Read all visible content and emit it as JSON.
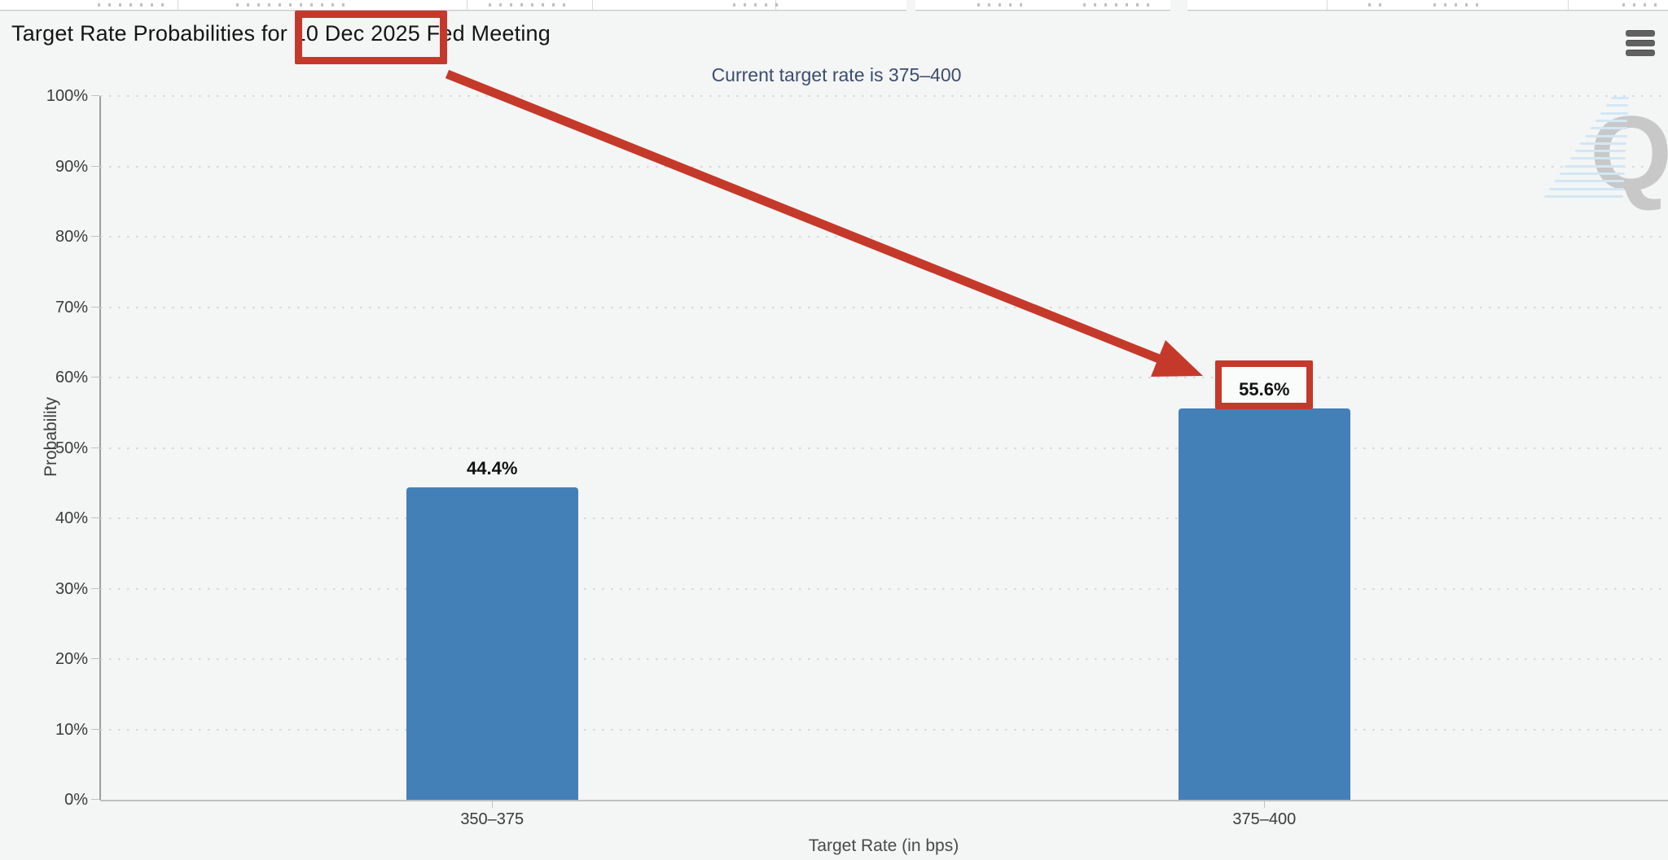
{
  "colors": {
    "accent_red": "#c5392b",
    "bar_blue": "#4480b8",
    "subtitle_navy": "#3d4d6e",
    "watermark_gray": "#c1c1c1",
    "watermark_blue": "#d2e7f4"
  },
  "menu": {
    "icon": "hamburger-icon"
  },
  "chart_data": {
    "type": "bar",
    "title": "Target Rate Probabilities for 10 Dec 2025 Fed Meeting",
    "subtitle": "Current target rate is 375–400",
    "categories": [
      "350–375",
      "375–400"
    ],
    "values": [
      44.4,
      55.6
    ],
    "value_labels": [
      "44.4%",
      "55.6%"
    ],
    "xlabel": "Target Rate (in bps)",
    "ylabel": "Probability",
    "ylim": [
      0,
      100
    ],
    "ytick_step": 10,
    "ytick_suffix": "%",
    "grid": "dotted-horizontal",
    "legend": "none",
    "bar_color": "#4480b8",
    "annotations": {
      "boxed_title_text": "10 Dec 2025",
      "boxed_value_text": "55.6%",
      "arrow": "red arrow from boxed meeting date to boxed 55.6% value",
      "color": "#c5392b"
    },
    "watermark_letter": "Q"
  }
}
